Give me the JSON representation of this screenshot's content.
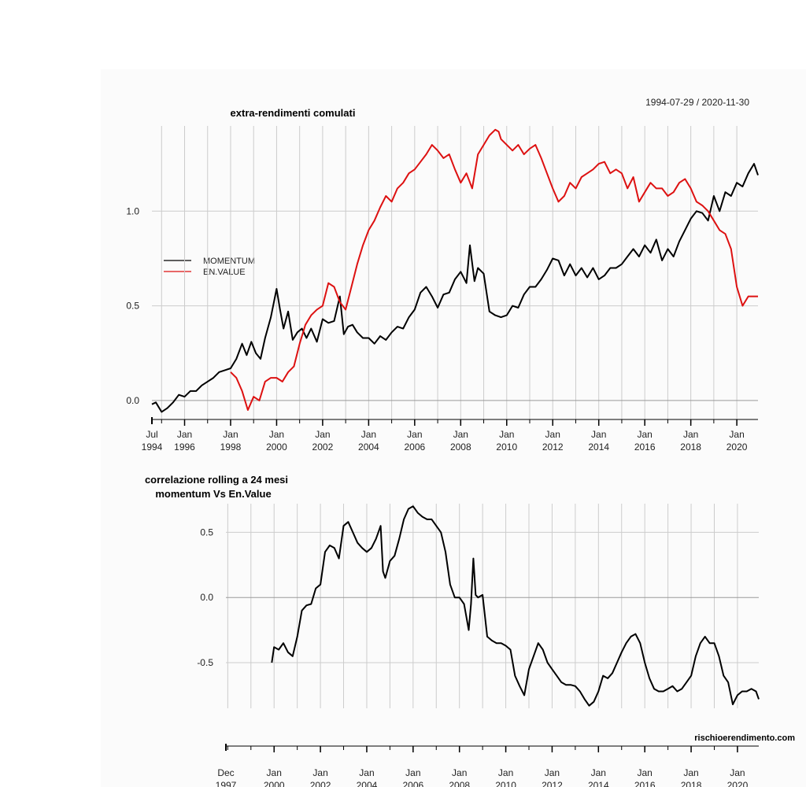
{
  "watermark": "rischioerendimento.com",
  "colors": {
    "momentum": "#000000",
    "en_value": "#dd1111",
    "grid": "#cccccc",
    "zero": "#999999"
  },
  "chart_data": [
    {
      "type": "line",
      "title": "extra-rendimenti comulati",
      "date_range_label": "1994-07-29 / 2020-11-30",
      "xlim": [
        1994.58,
        2020.92
      ],
      "ylim": [
        -0.1,
        1.45
      ],
      "yticks": [
        0.0,
        0.5,
        1.0
      ],
      "ytick_labels": [
        "0.0",
        "0.5",
        "1.0"
      ],
      "first_tick_label": [
        "Jul",
        "1994"
      ],
      "xtick_labels": [
        [
          "Jan",
          "1996"
        ],
        [
          "Jan",
          "1998"
        ],
        [
          "Jan",
          "2000"
        ],
        [
          "Jan",
          "2002"
        ],
        [
          "Jan",
          "2004"
        ],
        [
          "Jan",
          "2006"
        ],
        [
          "Jan",
          "2008"
        ],
        [
          "Jan",
          "2010"
        ],
        [
          "Jan",
          "2012"
        ],
        [
          "Jan",
          "2014"
        ],
        [
          "Jan",
          "2016"
        ],
        [
          "Jan",
          "2018"
        ],
        [
          "Jan",
          "2020"
        ]
      ],
      "legend": [
        "MOMENTUM",
        "EN.VALUE"
      ],
      "legend_position": "left",
      "series": [
        {
          "name": "MOMENTUM",
          "x": [
            1994.58,
            1994.75,
            1995.0,
            1995.25,
            1995.5,
            1995.75,
            1996.0,
            1996.25,
            1996.5,
            1996.75,
            1997.0,
            1997.25,
            1997.5,
            1997.75,
            1998.0,
            1998.25,
            1998.5,
            1998.7,
            1998.9,
            1999.1,
            1999.3,
            1999.5,
            1999.75,
            2000.0,
            2000.15,
            2000.3,
            2000.5,
            2000.7,
            2000.9,
            2001.1,
            2001.3,
            2001.5,
            2001.75,
            2002.0,
            2002.25,
            2002.5,
            2002.75,
            2002.92,
            2003.1,
            2003.3,
            2003.5,
            2003.75,
            2004.0,
            2004.25,
            2004.5,
            2004.75,
            2005.0,
            2005.25,
            2005.5,
            2005.75,
            2006.0,
            2006.25,
            2006.5,
            2006.75,
            2007.0,
            2007.25,
            2007.5,
            2007.75,
            2008.0,
            2008.25,
            2008.4,
            2008.6,
            2008.75,
            2009.0,
            2009.25,
            2009.5,
            2009.75,
            2010.0,
            2010.25,
            2010.5,
            2010.75,
            2011.0,
            2011.25,
            2011.5,
            2011.75,
            2012.0,
            2012.25,
            2012.5,
            2012.75,
            2013.0,
            2013.25,
            2013.5,
            2013.75,
            2014.0,
            2014.25,
            2014.5,
            2014.75,
            2015.0,
            2015.25,
            2015.5,
            2015.75,
            2016.0,
            2016.25,
            2016.5,
            2016.75,
            2017.0,
            2017.25,
            2017.5,
            2017.75,
            2018.0,
            2018.25,
            2018.5,
            2018.75,
            2019.0,
            2019.25,
            2019.5,
            2019.75,
            2020.0,
            2020.25,
            2020.5,
            2020.75,
            2020.92
          ],
          "values": [
            -0.02,
            -0.01,
            -0.06,
            -0.04,
            -0.01,
            0.03,
            0.02,
            0.05,
            0.05,
            0.08,
            0.1,
            0.12,
            0.15,
            0.16,
            0.17,
            0.22,
            0.3,
            0.24,
            0.31,
            0.25,
            0.22,
            0.33,
            0.44,
            0.59,
            0.48,
            0.38,
            0.47,
            0.32,
            0.36,
            0.38,
            0.33,
            0.38,
            0.31,
            0.43,
            0.41,
            0.42,
            0.55,
            0.35,
            0.39,
            0.4,
            0.36,
            0.33,
            0.33,
            0.3,
            0.34,
            0.32,
            0.36,
            0.39,
            0.38,
            0.44,
            0.48,
            0.57,
            0.6,
            0.55,
            0.49,
            0.56,
            0.57,
            0.64,
            0.68,
            0.62,
            0.82,
            0.63,
            0.7,
            0.67,
            0.47,
            0.45,
            0.44,
            0.45,
            0.5,
            0.49,
            0.56,
            0.6,
            0.6,
            0.64,
            0.69,
            0.75,
            0.74,
            0.66,
            0.72,
            0.66,
            0.7,
            0.65,
            0.7,
            0.64,
            0.66,
            0.7,
            0.7,
            0.72,
            0.76,
            0.8,
            0.76,
            0.82,
            0.78,
            0.85,
            0.74,
            0.8,
            0.76,
            0.84,
            0.9,
            0.96,
            1.0,
            0.99,
            0.95,
            1.08,
            1.0,
            1.1,
            1.08,
            1.15,
            1.13,
            1.2,
            1.25,
            1.19
          ]
        },
        {
          "name": "EN.VALUE",
          "x": [
            1998.0,
            1998.25,
            1998.5,
            1998.75,
            1999.0,
            1999.25,
            1999.5,
            1999.75,
            2000.0,
            2000.25,
            2000.5,
            2000.75,
            2001.0,
            2001.25,
            2001.5,
            2001.75,
            2002.0,
            2002.25,
            2002.5,
            2002.75,
            2003.0,
            2003.25,
            2003.5,
            2003.75,
            2004.0,
            2004.25,
            2004.5,
            2004.75,
            2005.0,
            2005.25,
            2005.5,
            2005.75,
            2006.0,
            2006.25,
            2006.5,
            2006.75,
            2007.0,
            2007.25,
            2007.5,
            2007.75,
            2008.0,
            2008.25,
            2008.5,
            2008.75,
            2009.0,
            2009.25,
            2009.5,
            2009.65,
            2009.75,
            2010.0,
            2010.25,
            2010.5,
            2010.75,
            2011.0,
            2011.25,
            2011.5,
            2011.75,
            2012.0,
            2012.25,
            2012.5,
            2012.75,
            2013.0,
            2013.25,
            2013.5,
            2013.75,
            2014.0,
            2014.25,
            2014.5,
            2014.75,
            2015.0,
            2015.25,
            2015.5,
            2015.75,
            2016.0,
            2016.25,
            2016.5,
            2016.75,
            2017.0,
            2017.25,
            2017.5,
            2017.75,
            2018.0,
            2018.25,
            2018.5,
            2018.75,
            2019.0,
            2019.25,
            2019.5,
            2019.75,
            2020.0,
            2020.25,
            2020.5,
            2020.75,
            2020.92
          ],
          "values": [
            0.15,
            0.12,
            0.05,
            -0.05,
            0.02,
            0.0,
            0.1,
            0.12,
            0.12,
            0.1,
            0.15,
            0.18,
            0.3,
            0.4,
            0.45,
            0.48,
            0.5,
            0.62,
            0.6,
            0.52,
            0.48,
            0.6,
            0.72,
            0.82,
            0.9,
            0.95,
            1.02,
            1.08,
            1.05,
            1.12,
            1.15,
            1.2,
            1.22,
            1.26,
            1.3,
            1.35,
            1.32,
            1.28,
            1.3,
            1.22,
            1.15,
            1.2,
            1.12,
            1.3,
            1.35,
            1.4,
            1.43,
            1.42,
            1.38,
            1.35,
            1.32,
            1.35,
            1.3,
            1.33,
            1.35,
            1.28,
            1.2,
            1.12,
            1.05,
            1.08,
            1.15,
            1.12,
            1.18,
            1.2,
            1.22,
            1.25,
            1.26,
            1.2,
            1.22,
            1.2,
            1.12,
            1.18,
            1.05,
            1.1,
            1.15,
            1.12,
            1.12,
            1.08,
            1.1,
            1.15,
            1.17,
            1.12,
            1.05,
            1.03,
            1.0,
            0.95,
            0.9,
            0.88,
            0.8,
            0.6,
            0.5,
            0.55,
            0.55,
            0.55
          ]
        }
      ]
    },
    {
      "type": "line",
      "title": "correlazione rolling a 24 mesi",
      "subtitle": "momentum Vs En.Value",
      "xlim": [
        1997.92,
        2020.92
      ],
      "ylim": [
        -0.85,
        0.72
      ],
      "yticks": [
        -0.5,
        0.0,
        0.5
      ],
      "ytick_labels": [
        "-0.5",
        "0.0",
        "0.5"
      ],
      "first_tick_label": [
        "Dec",
        "1997"
      ],
      "xtick_labels": [
        [
          "Jan",
          "2000"
        ],
        [
          "Jan",
          "2002"
        ],
        [
          "Jan",
          "2004"
        ],
        [
          "Jan",
          "2006"
        ],
        [
          "Jan",
          "2008"
        ],
        [
          "Jan",
          "2010"
        ],
        [
          "Jan",
          "2012"
        ],
        [
          "Jan",
          "2014"
        ],
        [
          "Jan",
          "2016"
        ],
        [
          "Jan",
          "2018"
        ],
        [
          "Jan",
          "2020"
        ]
      ],
      "series": [
        {
          "name": "correlazione",
          "x": [
            1999.9,
            2000.0,
            2000.2,
            2000.4,
            2000.6,
            2000.8,
            2001.0,
            2001.2,
            2001.4,
            2001.6,
            2001.8,
            2002.0,
            2002.2,
            2002.4,
            2002.6,
            2002.8,
            2003.0,
            2003.2,
            2003.4,
            2003.6,
            2003.8,
            2004.0,
            2004.2,
            2004.4,
            2004.6,
            2004.7,
            2004.8,
            2005.0,
            2005.2,
            2005.4,
            2005.6,
            2005.8,
            2006.0,
            2006.2,
            2006.4,
            2006.6,
            2006.8,
            2007.0,
            2007.2,
            2007.4,
            2007.6,
            2007.8,
            2008.0,
            2008.2,
            2008.4,
            2008.5,
            2008.6,
            2008.7,
            2008.8,
            2009.0,
            2009.2,
            2009.4,
            2009.6,
            2009.8,
            2010.0,
            2010.2,
            2010.4,
            2010.6,
            2010.8,
            2011.0,
            2011.2,
            2011.4,
            2011.6,
            2011.8,
            2012.0,
            2012.2,
            2012.4,
            2012.6,
            2012.8,
            2013.0,
            2013.2,
            2013.4,
            2013.6,
            2013.8,
            2014.0,
            2014.2,
            2014.4,
            2014.6,
            2014.8,
            2015.0,
            2015.2,
            2015.4,
            2015.6,
            2015.8,
            2016.0,
            2016.2,
            2016.4,
            2016.6,
            2016.8,
            2017.0,
            2017.2,
            2017.4,
            2017.6,
            2017.8,
            2018.0,
            2018.2,
            2018.4,
            2018.6,
            2018.8,
            2019.0,
            2019.2,
            2019.4,
            2019.6,
            2019.8,
            2020.0,
            2020.2,
            2020.4,
            2020.6,
            2020.8,
            2020.92
          ],
          "values": [
            -0.5,
            -0.38,
            -0.4,
            -0.35,
            -0.42,
            -0.45,
            -0.3,
            -0.1,
            -0.06,
            -0.05,
            0.07,
            0.1,
            0.35,
            0.4,
            0.38,
            0.3,
            0.55,
            0.58,
            0.5,
            0.42,
            0.38,
            0.35,
            0.38,
            0.45,
            0.55,
            0.2,
            0.15,
            0.28,
            0.32,
            0.45,
            0.6,
            0.68,
            0.7,
            0.65,
            0.62,
            0.6,
            0.6,
            0.55,
            0.5,
            0.35,
            0.1,
            0.0,
            0.0,
            -0.05,
            -0.25,
            -0.05,
            0.3,
            0.02,
            0.0,
            0.02,
            -0.3,
            -0.33,
            -0.35,
            -0.35,
            -0.37,
            -0.4,
            -0.6,
            -0.68,
            -0.75,
            -0.55,
            -0.45,
            -0.35,
            -0.4,
            -0.5,
            -0.55,
            -0.6,
            -0.65,
            -0.67,
            -0.67,
            -0.68,
            -0.72,
            -0.78,
            -0.83,
            -0.8,
            -0.72,
            -0.6,
            -0.62,
            -0.58,
            -0.5,
            -0.42,
            -0.35,
            -0.3,
            -0.28,
            -0.35,
            -0.5,
            -0.62,
            -0.7,
            -0.72,
            -0.72,
            -0.7,
            -0.68,
            -0.72,
            -0.7,
            -0.65,
            -0.6,
            -0.45,
            -0.35,
            -0.3,
            -0.35,
            -0.35,
            -0.45,
            -0.6,
            -0.65,
            -0.82,
            -0.75,
            -0.72,
            -0.72,
            -0.7,
            -0.72,
            -0.78
          ]
        }
      ]
    }
  ]
}
